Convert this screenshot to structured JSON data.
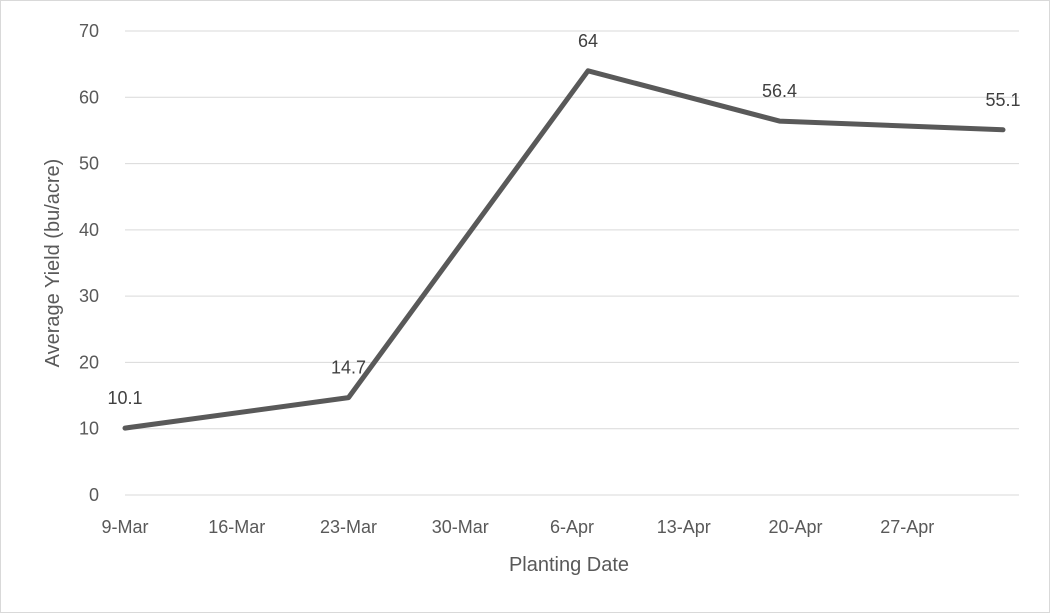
{
  "chart_data": {
    "type": "line",
    "title": "",
    "xlabel": "Planting Date",
    "ylabel": "Average Yield (bu/acre)",
    "x_tick_labels": [
      "9-Mar",
      "16-Mar",
      "23-Mar",
      "30-Mar",
      "6-Apr",
      "13-Apr",
      "20-Apr",
      "27-Apr"
    ],
    "x_tick_dates": [
      "2021-03-09",
      "2021-03-16",
      "2021-03-23",
      "2021-03-30",
      "2021-04-06",
      "2021-04-13",
      "2021-04-20",
      "2021-04-27"
    ],
    "xlim": [
      "2021-03-09",
      "2021-05-04"
    ],
    "ylim": [
      0,
      70
    ],
    "y_ticks": [
      0,
      10,
      20,
      30,
      40,
      50,
      60,
      70
    ],
    "grid": true,
    "legend": "none",
    "series": [
      {
        "color": "#595959",
        "points": [
          {
            "x": "2021-03-09",
            "y": 10.1,
            "label": "10.1"
          },
          {
            "x": "2021-03-23",
            "y": 14.7,
            "label": "14.7"
          },
          {
            "x": "2021-04-07",
            "y": 64,
            "label": "64"
          },
          {
            "x": "2021-04-19",
            "y": 56.4,
            "label": "56.4"
          },
          {
            "x": "2021-05-03",
            "y": 55.1,
            "label": "55.1"
          }
        ]
      }
    ]
  }
}
